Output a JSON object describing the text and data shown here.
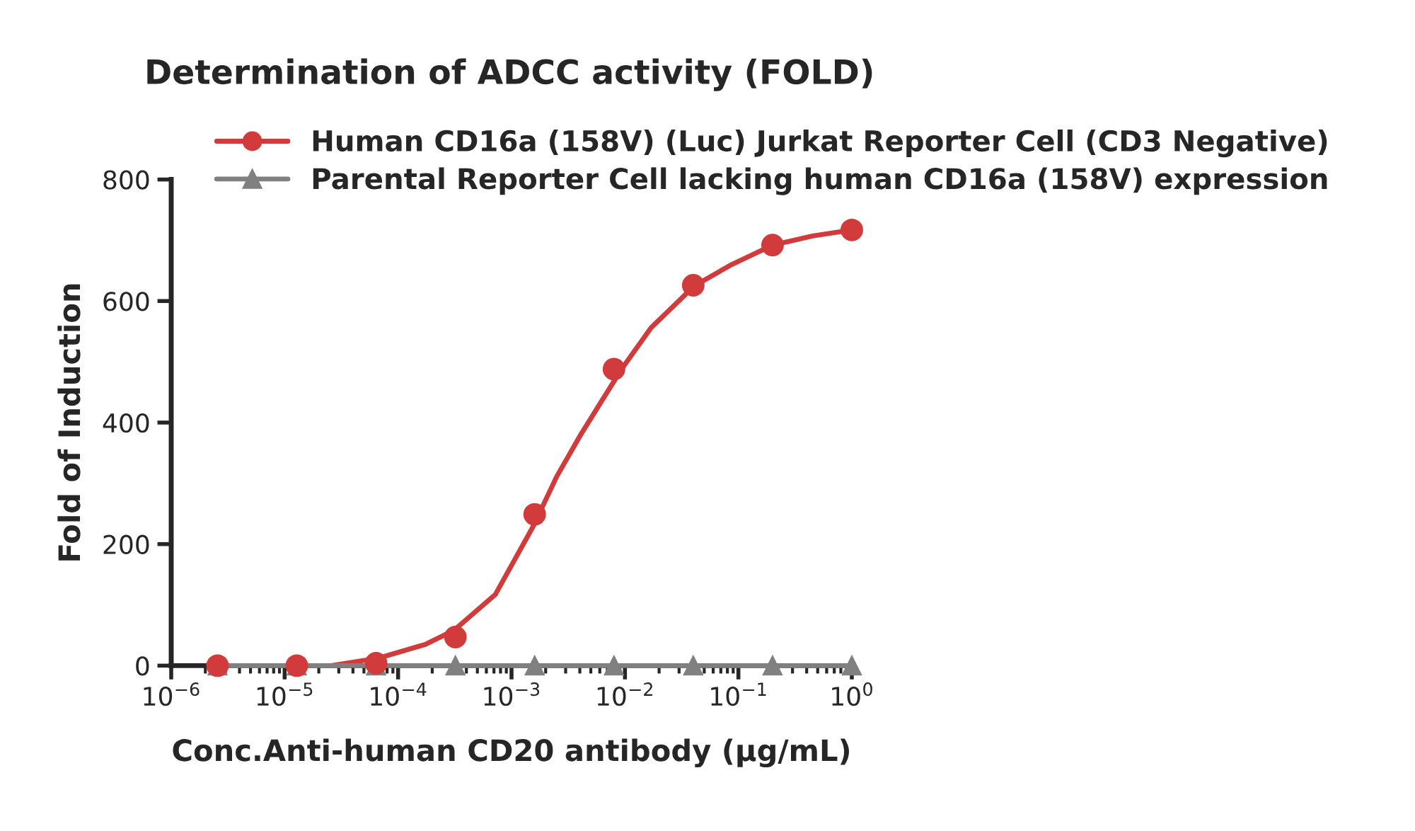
{
  "chart_data": {
    "type": "scatter",
    "title": "Determination of ADCC activity (FOLD)",
    "xlabel": "Conc.Anti-human CD20 antibody (µg/mL)",
    "ylabel": "Fold of Induction",
    "log": "x",
    "xlim": [
      1e-06,
      1
    ],
    "xticks": [
      {
        "value": 1e-06,
        "label": "10$^{−6}$"
      },
      {
        "value": 1e-05,
        "label": "10$^{−5}$"
      },
      {
        "value": 0.0001,
        "label": "10$^{−4}$"
      },
      {
        "value": 0.001,
        "label": "10$^{−3}$"
      },
      {
        "value": 0.01,
        "label": "10$^{−2}$"
      },
      {
        "value": 0.1,
        "label": "10$^{−1}$"
      },
      {
        "value": 1,
        "label": "10$^{0}$"
      }
    ],
    "ylim": [
      0,
      800
    ],
    "yticks": [
      0,
      200,
      400,
      600,
      800
    ],
    "grid": false,
    "legend": "top",
    "series": [
      {
        "name": "Human CD16a (158V) (Luc) Jurkat Reporter Cell (CD3 Negative)",
        "marker": "circle",
        "color": "#d13b3b",
        "x": [
          2.56e-06,
          1.28e-05,
          6.4e-05,
          0.00032,
          0.0016,
          0.008,
          0.04,
          0.2,
          1
        ],
        "values": [
          0,
          0,
          4,
          47,
          249,
          488,
          626,
          692,
          717
        ]
      },
      {
        "type": "line",
        "marker": "none",
        "color": "#d13b3b",
        "x": [
          2.57e-05,
          6.6e-05,
          0.000174,
          0.00031,
          0.00072,
          0.00155,
          0.0025,
          0.0041,
          0.0066,
          0.0095,
          0.017,
          0.041,
          0.087,
          0.2,
          0.45,
          1
        ],
        "values": [
          0,
          12,
          35,
          58,
          117,
          229,
          311,
          381,
          443,
          490,
          556,
          625,
          660,
          692,
          707,
          717
        ]
      },
      {
        "name": "Parental Reporter Cell lacking human CD16a (158V) expression",
        "type": "line",
        "marker": "triangle",
        "color": "#808080",
        "x": [
          2.56e-06,
          1.28e-05,
          6.4e-05,
          0.00032,
          0.0016,
          0.008,
          0.04,
          0.2,
          1
        ],
        "values": [
          0,
          0,
          0,
          0,
          0,
          0,
          0,
          0,
          0
        ]
      }
    ]
  }
}
